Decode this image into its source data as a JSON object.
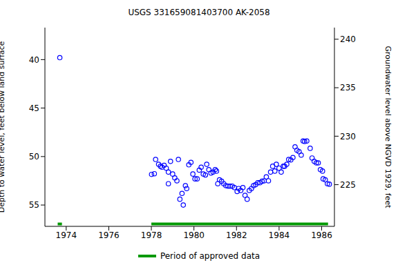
{
  "chart_data": {
    "type": "scatter",
    "title": "USGS 331659081403700 AK-2058",
    "ylabel": "Depth to water level, feet below land surface",
    "y2label": "Groundwater level above NGVD 1929, feet",
    "xlim": [
      1973.0,
      1986.6
    ],
    "xticks": [
      1974,
      1976,
      1978,
      1980,
      1982,
      1984,
      1986
    ],
    "ylim": [
      36.7,
      57.2
    ],
    "yticks": [
      40,
      45,
      50,
      55
    ],
    "y2lim": [
      220.7,
      241.2
    ],
    "y2ticks": [
      225,
      230,
      235,
      240
    ],
    "grid": false,
    "legend": "bottom",
    "color": "#0000ff",
    "marker": "circle-open",
    "x": [
      1973.7,
      1978.01,
      1978.14,
      1978.2,
      1978.34,
      1978.43,
      1978.5,
      1978.6,
      1978.7,
      1978.8,
      1978.9,
      1978.8,
      1979.0,
      1979.1,
      1979.2,
      1979.27,
      1979.34,
      1979.44,
      1979.5,
      1979.6,
      1979.66,
      1979.76,
      1979.86,
      1979.95,
      1980.05,
      1980.15,
      1980.25,
      1980.34,
      1980.44,
      1980.54,
      1980.6,
      1980.7,
      1980.8,
      1980.9,
      1981.0,
      1981.06,
      1981.12,
      1981.2,
      1981.3,
      1981.4,
      1981.5,
      1981.6,
      1981.7,
      1981.8,
      1981.9,
      1982.03,
      1982.1,
      1982.2,
      1982.3,
      1982.4,
      1982.5,
      1982.6,
      1982.7,
      1982.8,
      1982.9,
      1983.0,
      1983.1,
      1983.2,
      1983.3,
      1983.4,
      1983.5,
      1983.6,
      1983.7,
      1983.8,
      1983.87,
      1984.0,
      1984.1,
      1984.2,
      1984.26,
      1984.36,
      1984.45,
      1984.55,
      1984.65,
      1984.75,
      1984.84,
      1984.94,
      1985.04,
      1985.13,
      1985.2,
      1985.3,
      1985.46,
      1985.55,
      1985.65,
      1985.75,
      1985.84,
      1985.94,
      1986.04,
      1986.07,
      1986.17,
      1986.27,
      1986.36
    ],
    "values": [
      39.8,
      51.84,
      51.77,
      50.3,
      50.8,
      51.0,
      51.1,
      50.9,
      51.2,
      51.6,
      50.5,
      52.8,
      51.8,
      52.2,
      52.5,
      50.3,
      54.4,
      53.8,
      55.0,
      53.0,
      53.3,
      50.85,
      50.6,
      51.8,
      52.3,
      52.3,
      51.4,
      51.1,
      51.8,
      51.9,
      50.8,
      51.35,
      51.7,
      51.6,
      51.35,
      51.5,
      52.8,
      52.4,
      52.55,
      52.8,
      53.0,
      53.05,
      53.05,
      53.05,
      53.2,
      53.6,
      53.3,
      53.5,
      53.2,
      54.0,
      54.4,
      53.5,
      53.3,
      53.0,
      52.9,
      52.7,
      52.7,
      52.55,
      52.5,
      52.1,
      52.5,
      51.6,
      51.0,
      51.5,
      50.8,
      51.2,
      51.6,
      51.0,
      51.0,
      50.8,
      50.3,
      50.35,
      50.1,
      49.0,
      49.35,
      49.5,
      49.85,
      48.4,
      48.45,
      48.4,
      49.15,
      50.15,
      50.5,
      50.65,
      50.65,
      51.35,
      51.5,
      52.3,
      52.4,
      52.8,
      52.85
    ],
    "periods": {
      "name": "Period of approved data",
      "color": "#009900",
      "ranges": [
        [
          1973.6,
          1973.8
        ],
        [
          1978.0,
          1986.3
        ]
      ]
    }
  }
}
